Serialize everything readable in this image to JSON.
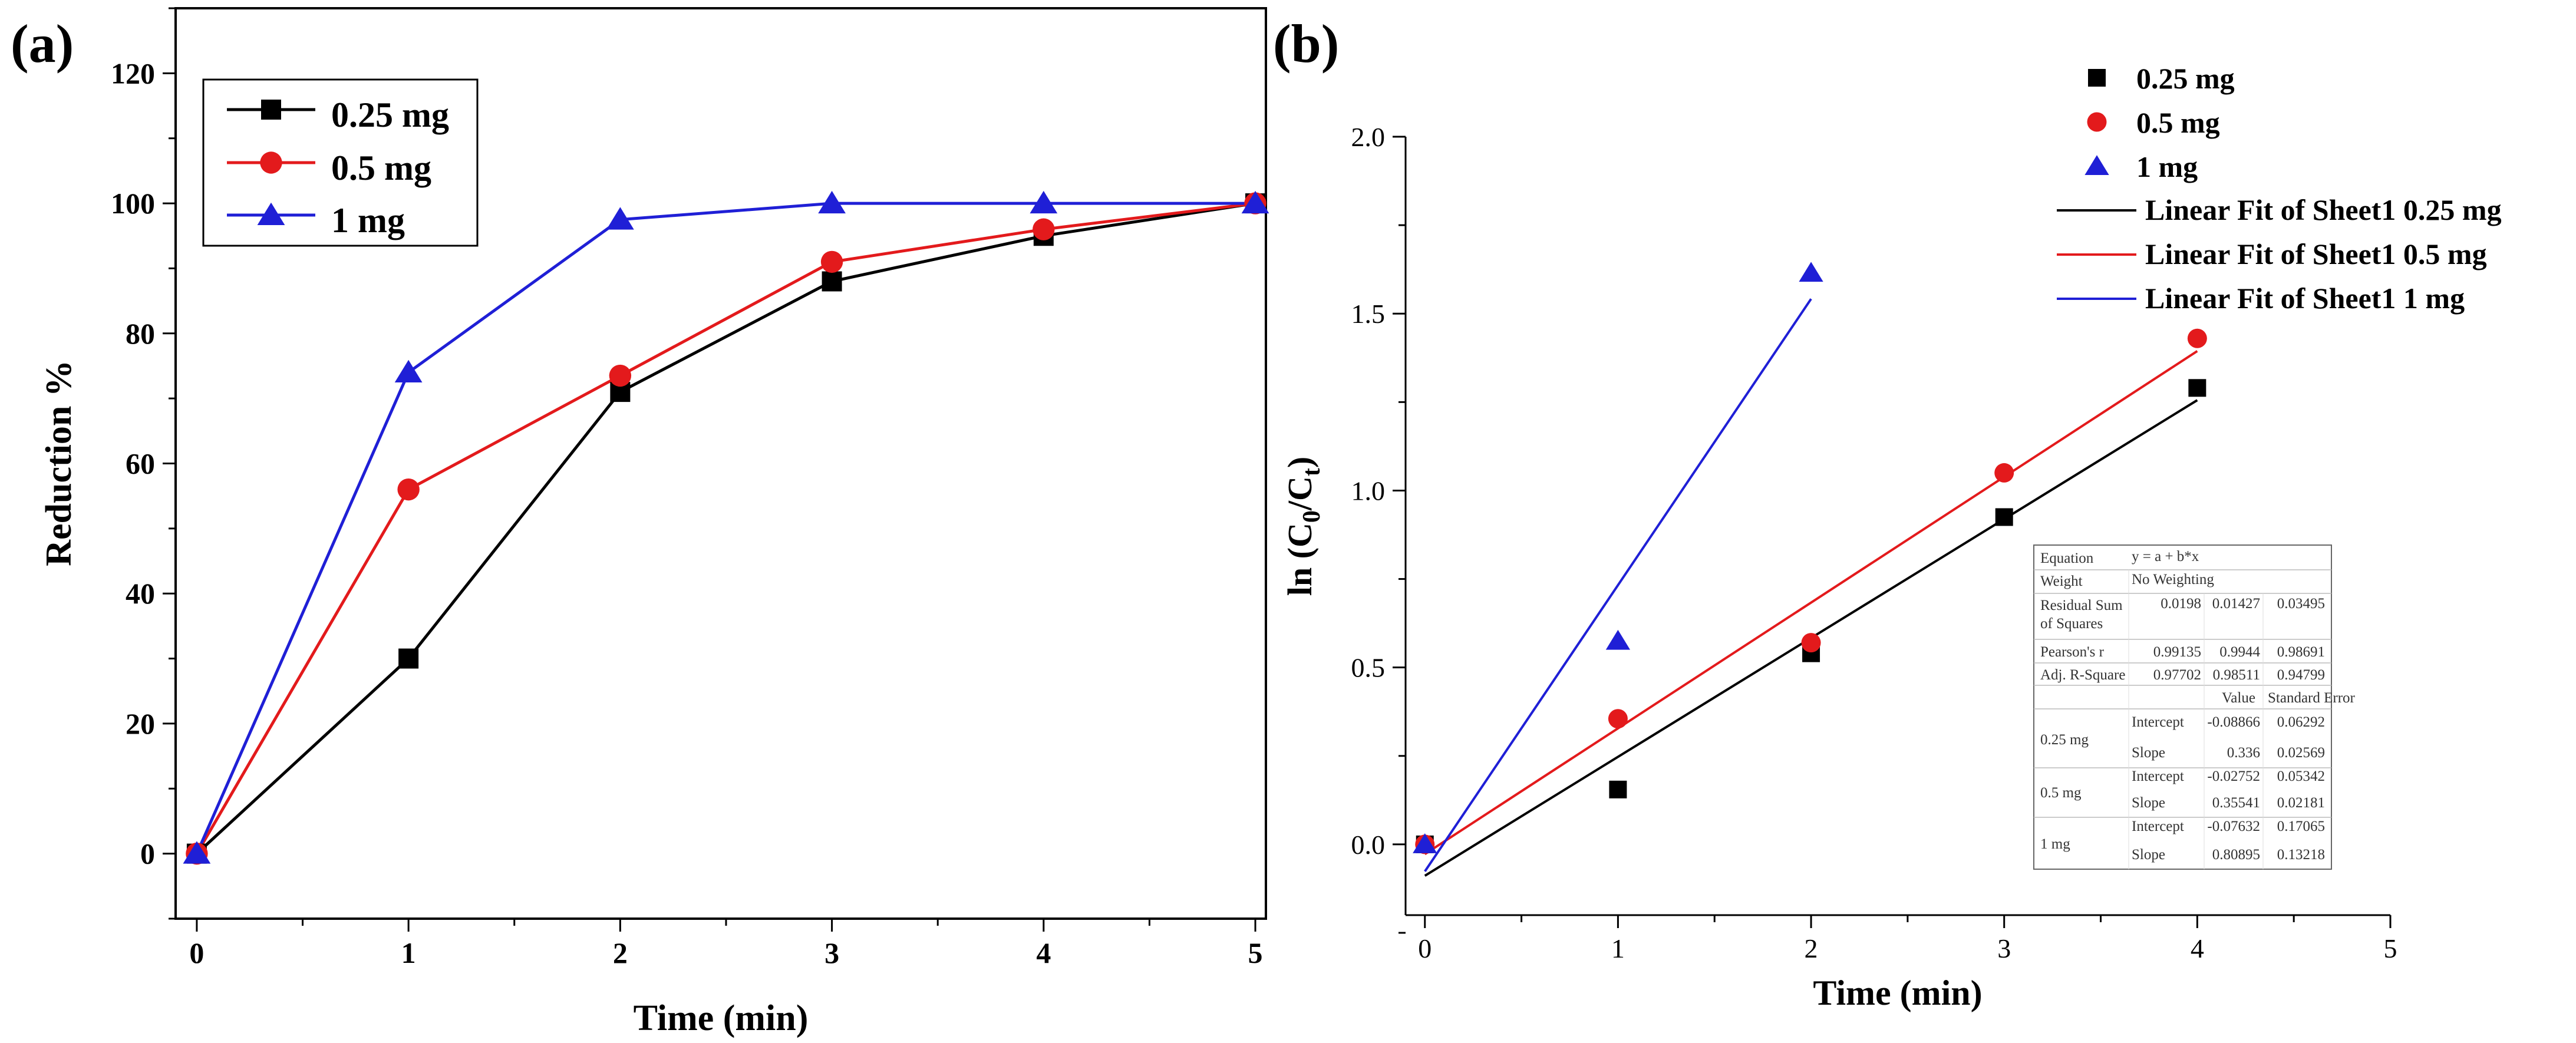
{
  "chart_data": [
    {
      "panel_label": "(a)",
      "type": "line",
      "xlabel": "Time (min)",
      "ylabel": "Reduction %",
      "xlim": [
        -0.1,
        5.05
      ],
      "ylim": [
        -10,
        130
      ],
      "xticks": [
        0,
        1,
        2,
        3,
        4,
        5
      ],
      "yticks": [
        0,
        20,
        40,
        60,
        80,
        100,
        120
      ],
      "grid": false,
      "legend_position": "top-left",
      "x": [
        0,
        1,
        2,
        3,
        4,
        5
      ],
      "series": [
        {
          "name": "0.25 mg",
          "values": [
            0,
            30,
            71,
            88,
            95,
            100
          ],
          "color": "#000000",
          "marker": "square"
        },
        {
          "name": "0.5 mg",
          "values": [
            0,
            56,
            73.5,
            91,
            96,
            100
          ],
          "color": "#e31a1c",
          "marker": "circle"
        },
        {
          "name": "1 mg",
          "values": [
            0,
            74,
            97.5,
            100,
            100,
            100
          ],
          "color": "#1f1fd6",
          "marker": "triangle"
        }
      ]
    },
    {
      "panel_label": "(b)",
      "type": "scatter",
      "xlabel": "Time (min)",
      "ylabel_main": "ln (C",
      "ylabel_sub0": "0",
      "ylabel_mid": "/C",
      "ylabel_subt": "t",
      "ylabel_end": ")",
      "xlim": [
        -0.1,
        5
      ],
      "ylim": [
        -0.2,
        2.0
      ],
      "xticks": [
        0,
        1,
        2,
        3,
        4,
        5
      ],
      "yticks": [
        "0.0",
        "0.5",
        "1.0",
        "1.5",
        "2.0"
      ],
      "grid": false,
      "legend_position": "top-right",
      "series": [
        {
          "name": "0.25 mg",
          "x": [
            0,
            1,
            2,
            3,
            4
          ],
          "y": [
            0,
            0.155,
            0.54,
            0.925,
            1.29
          ],
          "color": "#000000",
          "marker": "square"
        },
        {
          "name": "0.5 mg",
          "x": [
            0,
            1,
            2,
            3,
            4
          ],
          "y": [
            0,
            0.355,
            0.57,
            1.05,
            1.43
          ],
          "color": "#e31a1c",
          "marker": "circle"
        },
        {
          "name": "1 mg",
          "x": [
            0,
            1,
            2
          ],
          "y": [
            0,
            0.575,
            1.615
          ],
          "color": "#1f1fd6",
          "marker": "triangle"
        }
      ],
      "fits": [
        {
          "name": "Linear Fit of Sheet1 0.25 mg",
          "intercept": -0.08866,
          "slope": 0.336,
          "x_range": [
            0,
            4
          ],
          "color": "#000000"
        },
        {
          "name": "Linear Fit of Sheet1 0.5 mg",
          "intercept": -0.02752,
          "slope": 0.35541,
          "x_range": [
            0,
            4
          ],
          "color": "#e31a1c"
        },
        {
          "name": "Linear Fit of Sheet1 1 mg",
          "intercept": -0.07632,
          "slope": 0.80895,
          "x_range": [
            0,
            2
          ],
          "color": "#1f1fd6"
        }
      ],
      "fit_table": {
        "equation_label": "Equation",
        "equation_value": "y = a + b*x",
        "weight_label": "Weight",
        "weight_value": "No Weighting",
        "rss_label_1": "Residual Sum",
        "rss_label_2": "of Squares",
        "rss_values": [
          "0.0198",
          "0.01427",
          "0.03495"
        ],
        "pearson_label": "Pearson's r",
        "pearson_values": [
          "0.99135",
          "0.9944",
          "0.98691"
        ],
        "adjr_label": "Adj. R-Square",
        "adjr_values": [
          "0.97702",
          "0.98511",
          "0.94799"
        ],
        "value_header": "Value",
        "stderr_header": "Standard Error",
        "rows": [
          {
            "series": "0.25 mg",
            "params": [
              {
                "name": "Intercept",
                "value": "-0.08866",
                "err": "0.06292"
              },
              {
                "name": "Slope",
                "value": "0.336",
                "err": "0.02569"
              }
            ]
          },
          {
            "series": "0.5 mg",
            "params": [
              {
                "name": "Intercept",
                "value": "-0.02752",
                "err": "0.05342"
              },
              {
                "name": "Slope",
                "value": "0.35541",
                "err": "0.02181"
              }
            ]
          },
          {
            "series": "1 mg",
            "params": [
              {
                "name": "Intercept",
                "value": "-0.07632",
                "err": "0.17065"
              },
              {
                "name": "Slope",
                "value": "0.80895",
                "err": "0.13218"
              }
            ]
          }
        ]
      }
    }
  ]
}
